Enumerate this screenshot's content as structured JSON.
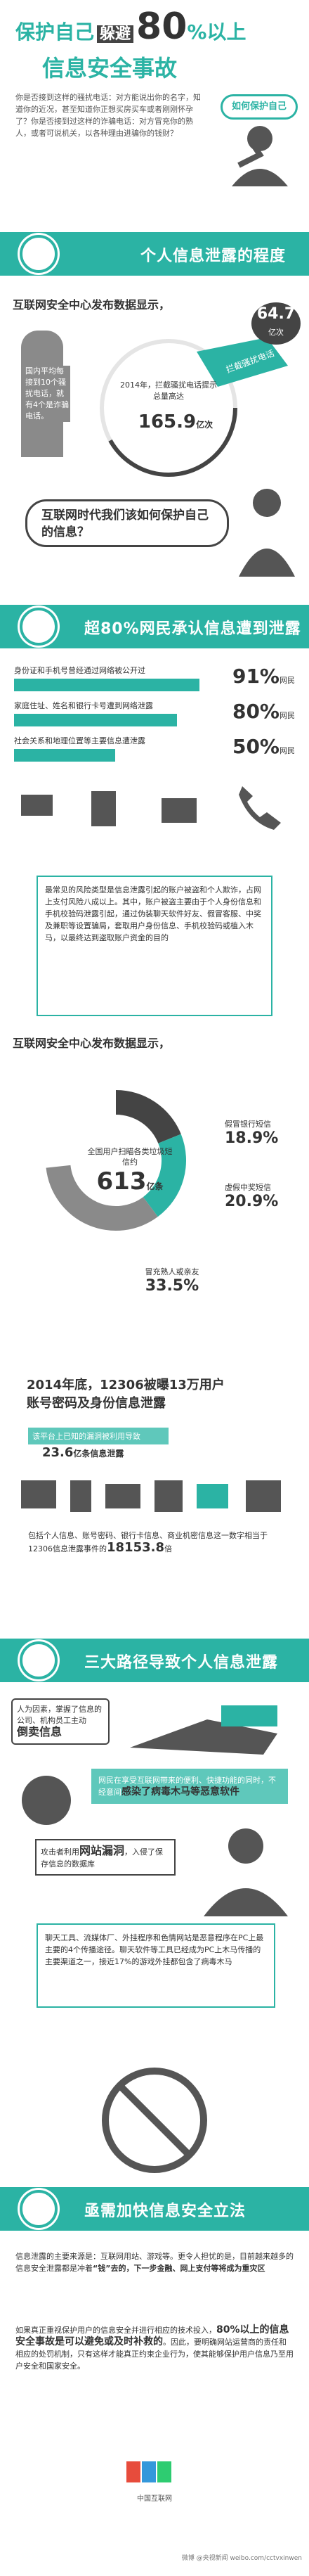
{
  "header": {
    "title_line1_a": "保护自己",
    "title_line1_b": "躲避",
    "title_line1_c": "80",
    "title_line1_d": "%以上",
    "title_line2": "信息安全事故",
    "intro": "你是否接到这样的骚扰电话：对方能说出你的名字，知道你的近况，甚至知道你正想买房买车或者刚刚怀孕了？你是否接到过这样的诈骗电话：对方冒充你的熟人，或者可说机关，以各种理由进骗你的钱财？",
    "speech": "如何保护自己"
  },
  "section1": {
    "banner": "个人信息泄露的程度",
    "subtitle": "互联网安全中心发布数据显示，",
    "stat1_pre": "国内平均每接到10个骚扰电话，就有4个是诈骗电话。",
    "stat_value": "64.7",
    "stat_unit": "亿次",
    "stat_tag": "拦截骚扰电话",
    "stat2_pre": "2014年，拦截骚扰电话提示总量高达",
    "stat2_value": "165.9",
    "stat2_unit": "亿次",
    "question": "互联网时代我们该如何保护自己的信息？"
  },
  "section2": {
    "banner": "超80%网民承认信息遭到泄露",
    "rows": [
      {
        "label": "身份证和手机号曾经通过网络被公开过",
        "value": "91%",
        "unit": "网民",
        "pct": 0.91
      },
      {
        "label": "家庭住址、姓名和银行卡号遭到网络泄露",
        "value": "80%",
        "unit": "网民",
        "pct": 0.8
      },
      {
        "label": "社会关系和地理位置等主要信息遭泄露",
        "value": "50%",
        "unit": "网民",
        "pct": 0.5
      }
    ],
    "desc": "最常见的风险类型是信息泄露引起的账户被盗和个人欺诈，占网上支付风险八成以上。其中，账户被盗主要由于个人身份信息和手机校验码泄露引起，通过伪装聊天软件好友、假冒客服、中奖及兼职等设置骗局，套取用户身份信息、手机校验码或植入木马，以最终达到盗取账户资金的目的"
  },
  "section3": {
    "subtitle": "互联网安全中心发布数据显示，",
    "donut_center_label": "全国用户扫瞄各类垃圾短信约",
    "donut_center_value": "613",
    "donut_center_unit": "亿条",
    "chart_data": {
      "type": "pie",
      "categories": [
        "假冒银行短信",
        "虚假中奖短信",
        "冒充熟人或亲友"
      ],
      "values": [
        18.9,
        20.9,
        33.5
      ]
    },
    "leak_title1": "2014年底，",
    "leak_title2": "12306被曝13万用户",
    "leak_title3": "账号密码及身份信息泄露",
    "leak_sub1": "该平台上已知的漏洞被利用导致",
    "leak_sub2": "23.6",
    "leak_sub3": "亿条信息泄露",
    "leak_desc1": "包括个人信息、账号密码、银行卡信息、商业机密信息这一数字相当于12306信息泄露事件的",
    "leak_desc2": "18153.8",
    "leak_desc3": "倍"
  },
  "section4": {
    "banner": "三大路径导致个人信息泄露",
    "p1_a": "人为因素，掌握了信息的公司、机构员工主动",
    "p1_b": "倒卖信息",
    "p2_a": "网民在享受互联网带来的便利、快捷功能的同时，不经意间",
    "p2_b": "感染了病毒木马等恶意软件",
    "p3_a": "攻击者利用",
    "p3_b": "网站漏洞",
    "p3_c": "，入侵了保存信息的数据库",
    "p4": "聊天工具、流媒体厂、外挂程序和色情网站是恶意程序在PC上最主要的4个传播途径。聊天软件等工具已经成为PC上木马传播的主要渠道之一，接近17%的游戏外挂都包含了病毒木马"
  },
  "section5": {
    "banner": "亟需加快信息安全立法",
    "para1_a": "信息泄露的主要来源是：互联网用站、游戏等。更令人担忧的是，目前越来越多的信息安全泄露都是冲着",
    "para1_b": "“钱”去的，下一步金融、网上支付等将成为重灾区",
    "para2_a": "如果真正重视保护用户的信息安全并进行相应的技术投入，",
    "para2_b": "80%以上的信息安全事故是可以避免或及时补救的",
    "para2_c": "。因此，要明确网站运营商的责任和相应的处罚机制，只有这样才能真正约束企业行为，使其能够保护用户信息乃至用户安全和国家安全。",
    "footer_logo": "中国互联网",
    "footer_watermark": "微博 @央视新闻 weibo.com/cctvxinwen"
  },
  "colors": {
    "accent": "#2bb3a4",
    "dark": "#444444",
    "gray": "#8a8a8a"
  }
}
